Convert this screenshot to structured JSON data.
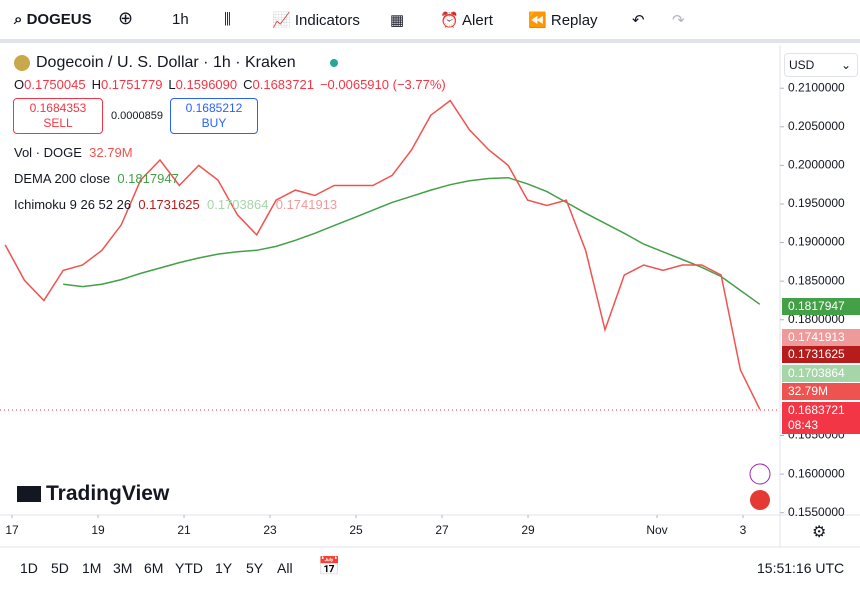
{
  "toolbar": {
    "symbol": "DOGEUSD",
    "interval": "1h",
    "indicators": "Indicators",
    "alert": "Alert",
    "replay": "Replay"
  },
  "legend": {
    "title": "Dogecoin / U. S. Dollar · 1h · Kraken",
    "ohlc": [
      {
        "label": "O",
        "value": "0.1750045"
      },
      {
        "label": "H",
        "value": "0.1751779"
      },
      {
        "label": "L",
        "value": "0.1596090"
      },
      {
        "label": "C",
        "value": "0.1683721"
      }
    ],
    "change": "−0.0065910 (−3.77%)",
    "sell": {
      "price": "0.1684353",
      "label": "SELL"
    },
    "spread": "0.0000859",
    "buy": {
      "price": "0.1685212",
      "label": "BUY"
    },
    "volume": {
      "label": "Vol · DOGE",
      "value": "32.79M"
    },
    "ichimoku": {
      "label": "Ichimoku 9 26 52 26",
      "values": [
        "0.1731625",
        "0.1703864",
        "0.1741913"
      ]
    }
  },
  "currency": "USD",
  "price_labels": [
    {
      "text": "0.1817947",
      "color": "#43a047"
    },
    {
      "text": "0.1741913",
      "color": "#ef9a9a"
    },
    {
      "text": "0.1731625",
      "color": "#b71c1c"
    },
    {
      "text": "0.1703864",
      "color": "#a5d6a7"
    },
    {
      "text": "32.79M",
      "color": "#ef5350"
    },
    {
      "text": "0.1683721",
      "color": "#f23645"
    }
  ],
  "countdown": "08:43",
  "logo": "TradingView",
  "ranges": [
    "1D",
    "5D",
    "1M",
    "3M",
    "6M",
    "YTD",
    "1Y",
    "5Y",
    "All"
  ],
  "clock": "15:51:16 UTC",
  "chart_data": {
    "type": "line",
    "color": "#ef5350",
    "x": [
      -0.16,
      0.29,
      0.74,
      1.19,
      1.64,
      2.09,
      2.54,
      2.99,
      3.44,
      3.89,
      4.34,
      4.79,
      5.24,
      5.69,
      6.14,
      6.59,
      7.04,
      7.49,
      7.94,
      8.39,
      8.84,
      9.29,
      9.74,
      10.19,
      10.64,
      11.09,
      11.54,
      11.99,
      12.44,
      12.89,
      13.34,
      13.79,
      14.24,
      14.69,
      15.14,
      15.59,
      16.04,
      16.49,
      16.94,
      17.39
    ],
    "values": [
      0.1897,
      0.1851,
      0.1825,
      0.1864,
      0.1871,
      0.189,
      0.1923,
      0.1981,
      0.2007,
      0.1974,
      0.2,
      0.1981,
      0.1936,
      0.191,
      0.1955,
      0.1968,
      0.1961,
      0.1974,
      0.1974,
      0.1974,
      0.1987,
      0.202,
      0.2065,
      0.2084,
      0.2046,
      0.202,
      0.2,
      0.1955,
      0.1948,
      0.1955,
      0.189,
      0.1787,
      0.1858,
      0.1871,
      0.1864,
      0.1871,
      0.1871,
      0.1858,
      0.1735,
      0.1684
    ],
    "series": [
      {
        "name": "DEMA 200 close",
        "color": "#43a047",
        "value_label": "0.1817947",
        "values": [
          null,
          null,
          null,
          0.1846,
          0.1843,
          0.1846,
          0.1852,
          0.186,
          0.1867,
          0.1874,
          0.188,
          0.1885,
          0.1888,
          0.189,
          0.1895,
          0.1903,
          0.1912,
          0.1922,
          0.1932,
          0.1942,
          0.1952,
          0.196,
          0.1968,
          0.1975,
          0.198,
          0.1983,
          0.1984,
          0.1976,
          0.1966,
          0.1952,
          0.1938,
          0.1925,
          0.1912,
          0.1898,
          0.1888,
          0.1878,
          0.1868,
          0.1856,
          0.1838,
          0.182
        ]
      }
    ],
    "xlim": [
      -0.28,
      17.86
    ],
    "ylim": [
      0.1547,
      0.2156
    ],
    "xticks": [
      {
        "value": 0,
        "label": "17"
      },
      {
        "value": 2,
        "label": "19"
      },
      {
        "value": 4,
        "label": "21"
      },
      {
        "value": 6,
        "label": "23"
      },
      {
        "value": 8,
        "label": "25"
      },
      {
        "value": 10,
        "label": "27"
      },
      {
        "value": 12,
        "label": "29"
      },
      {
        "value": 15,
        "label": "Nov"
      },
      {
        "value": 17,
        "label": "3"
      }
    ],
    "yticks": [
      {
        "value": 0.21,
        "label": "0.2100000"
      },
      {
        "value": 0.205,
        "label": "0.2050000"
      },
      {
        "value": 0.2,
        "label": "0.2000000"
      },
      {
        "value": 0.195,
        "label": "0.1950000"
      },
      {
        "value": 0.19,
        "label": "0.1900000"
      },
      {
        "value": 0.185,
        "label": "0.1850000"
      },
      {
        "value": 0.18,
        "label": "0.1800000"
      },
      {
        "value": 0.165,
        "label": "0.1650000"
      },
      {
        "value": 0.16,
        "label": "0.1600000"
      },
      {
        "value": 0.155,
        "label": "0.1550000"
      }
    ],
    "grid": false
  }
}
